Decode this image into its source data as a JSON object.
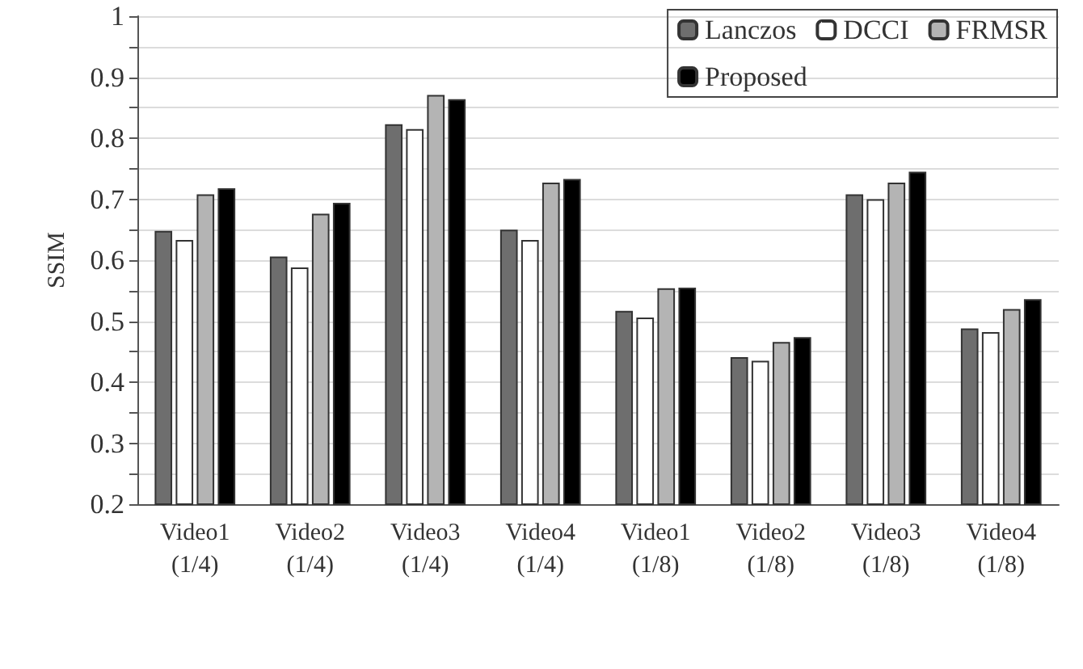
{
  "chart_data": {
    "type": "bar",
    "ylabel": "SSIM",
    "categories": [
      "Video1 (1/4)",
      "Video2 (1/4)",
      "Video3 (1/4)",
      "Video4 (1/4)",
      "Video1 (1/8)",
      "Video2 (1/8)",
      "Video3 (1/8)",
      "Video4 (1/8)"
    ],
    "series": [
      {
        "name": "Lanczos",
        "color": "#6e6e6e",
        "values": [
          0.648,
          0.606,
          0.823,
          0.65,
          0.517,
          0.441,
          0.708,
          0.488
        ]
      },
      {
        "name": "DCCI",
        "color": "#ffffff",
        "values": [
          0.633,
          0.588,
          0.815,
          0.633,
          0.506,
          0.435,
          0.7,
          0.482
        ]
      },
      {
        "name": "FRMSR",
        "color": "#b4b4b4",
        "values": [
          0.708,
          0.676,
          0.871,
          0.727,
          0.554,
          0.466,
          0.727,
          0.52
        ]
      },
      {
        "name": "Proposed",
        "color": "#000000",
        "values": [
          0.718,
          0.694,
          0.864,
          0.733,
          0.555,
          0.474,
          0.745,
          0.536
        ]
      }
    ],
    "ylim": [
      0.2,
      1
    ],
    "yticks": [
      0.2,
      0.3,
      0.4,
      0.5,
      0.6,
      0.7,
      0.8,
      0.9,
      1
    ],
    "grid": "y",
    "legend": "top right"
  }
}
